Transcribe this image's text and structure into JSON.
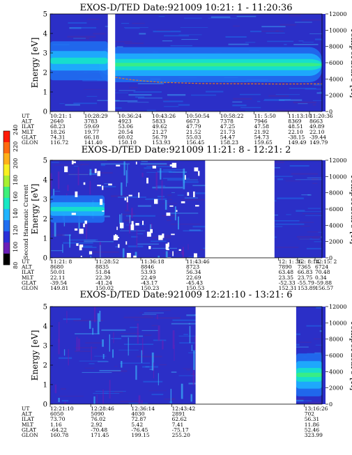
{
  "colorbar": {
    "label": "Second Harmonic Current",
    "ticks": [
      "80",
      "100",
      "120",
      "140",
      "160",
      "180",
      "200",
      "220",
      "240"
    ],
    "colors": [
      "#000000",
      "#6a1fb8",
      "#2a30d8",
      "#1f6ef0",
      "#1fb4ff",
      "#16e8c4",
      "#3ef07a",
      "#a8f030",
      "#f8f020",
      "#ffb018",
      "#ff6a10",
      "#ff1a08"
    ]
  },
  "chart_data": [
    {
      "type": "heatmap",
      "title": "EXOS-D/TED   Date:921009  10:21: 1 - 11:20:36",
      "ylabel": "Energy [eV]",
      "ylabel_right": "Temperature [K]",
      "ylim": [
        0,
        5
      ],
      "yticks": [
        "0",
        "1",
        "2",
        "3",
        "4",
        "5"
      ],
      "ylim_right": [
        0,
        12000
      ],
      "yticks_right": [
        "0",
        "2000",
        "4000",
        "6000",
        "8000",
        "10000",
        "12000"
      ],
      "row_labels": [
        "UT",
        "ALT",
        "ILAT",
        "MLT",
        "GLAT",
        "GLON"
      ],
      "columns": [
        [
          "10:21: 1",
          "2640",
          "68.23",
          "18.26",
          "74.31",
          "116.72"
        ],
        [
          "10:28:29",
          "3783",
          "59.69",
          "19.77",
          "66.18",
          "141.40"
        ],
        [
          "10:36:24",
          "4923",
          "53.06",
          "20.54",
          "60.02",
          "150.10"
        ],
        [
          "10:43:26",
          "5833",
          "49.62",
          "21.27",
          "56.79",
          "153.93"
        ],
        [
          "10:50:54",
          "6673",
          "47.79",
          "21.52",
          "55.03",
          "156.45"
        ],
        [
          "10:58:22",
          "7378",
          "47.25",
          "21.73",
          "54.47",
          "158.23"
        ],
        [
          "11: 5:50",
          "7946",
          "47.58",
          "21.92",
          "54.73",
          "159.65"
        ],
        [
          "11:13:10",
          "8369",
          "48.51",
          "22.10",
          "-38.15",
          "149.49"
        ],
        [
          "11:20:36",
          "8663",
          "49.89",
          "22.10",
          "-39.44",
          "149.79"
        ]
      ],
      "gaps": [
        [
          0.212,
          0.239
        ]
      ],
      "bands": [
        {
          "x_start": 0.18,
          "x_end": 1.0,
          "y_low": 1.5,
          "y_high": 3.3,
          "level": "high"
        },
        {
          "x_start": 0.0,
          "x_end": 0.212,
          "y_low": 1.6,
          "y_high": 3.6,
          "level": "mid"
        }
      ],
      "temperature_trace": [
        [
          0.24,
          4200
        ],
        [
          0.3,
          3900
        ],
        [
          0.4,
          3600
        ],
        [
          0.55,
          3450
        ],
        [
          0.7,
          3400
        ],
        [
          0.85,
          3380
        ],
        [
          1.0,
          3400
        ]
      ]
    },
    {
      "type": "heatmap",
      "title": "EXOS-D/TED   Date:921009  11:21: 8 - 12:21: 2",
      "ylabel": "Energy [eV]",
      "ylabel_right": "Temperature [K]",
      "ylim": [
        0,
        5
      ],
      "yticks": [
        "0",
        "1",
        "2",
        "3",
        "4",
        "5"
      ],
      "ylim_right": [
        0,
        12000
      ],
      "yticks_right": [
        "0",
        "2000",
        "4000",
        "6000",
        "8000",
        "10000",
        "12000"
      ],
      "row_labels": [
        "UT",
        "ALT",
        "ILAT",
        "MLT",
        "GLAT",
        "GLON"
      ],
      "columns": [
        [
          "11:21: 8",
          "8680",
          "50.01",
          "22.11",
          "-39.54",
          "149.81"
        ],
        [
          "11:28:52",
          "8835",
          "51.84",
          "22.30",
          "-41.24",
          "150.02"
        ],
        [
          "11:36:18",
          "8846",
          "53.93",
          "22.49",
          "-43.17",
          "150.23"
        ],
        [
          "11:43:46",
          "8723",
          "56.34",
          "22.69",
          "-45.43",
          "150.53"
        ],
        [
          "12: 1: 36",
          "7890",
          "63.48",
          "23.35",
          "-52.33",
          "152.31"
        ],
        [
          "12: 8:14",
          "7365",
          "66.83",
          "23.75",
          "-55.79",
          "153.89"
        ],
        [
          "12:15: 2",
          "6724",
          "70.48",
          "0.34",
          "-59.88",
          "156.57"
        ]
      ],
      "gaps": [
        [
          0.57,
          0.825
        ]
      ],
      "bands": [
        {
          "x_start": 0.0,
          "x_end": 0.2,
          "y_low": 1.8,
          "y_high": 3.2,
          "level": "mid"
        }
      ],
      "temperature_trace": []
    },
    {
      "type": "heatmap",
      "title": "EXOS-D/TED   Date:921009  12:21:10 - 13:21: 6",
      "ylabel": "Energy [eV]",
      "ylabel_right": "Temperature [K]",
      "ylim": [
        0,
        5
      ],
      "yticks": [
        "0",
        "1",
        "2",
        "3",
        "4",
        "5"
      ],
      "ylim_right": [
        0,
        12000
      ],
      "yticks_right": [
        "0",
        "2000",
        "4000",
        "6000",
        "8000",
        "10000",
        "12000"
      ],
      "row_labels": [
        "UT",
        "ALT",
        "ILAT",
        "MLT",
        "GLAT",
        "GLON"
      ],
      "columns": [
        [
          "12:21:10",
          "6050",
          "73.70",
          "1.16",
          "-64.22",
          "160.78"
        ],
        [
          "12:28:46",
          "5090",
          "76.02",
          "2.92",
          "-70.48",
          "171.45"
        ],
        [
          "12:36:14",
          "4030",
          "72.87",
          "5.42",
          "-76.45",
          "199.15"
        ],
        [
          "12:43:42",
          "2891",
          "62.62",
          "7.41",
          "-75.17",
          "255.20"
        ],
        [
          "13:16:26",
          "702",
          "56.31",
          "11.86",
          "52.46",
          "323.99"
        ]
      ],
      "gaps": [
        [
          0.535,
          0.905
        ]
      ],
      "bands": [
        {
          "x_start": 0.905,
          "x_end": 1.0,
          "y_low": 0.4,
          "y_high": 2.6,
          "level": "high"
        }
      ],
      "temperature_trace": []
    }
  ]
}
